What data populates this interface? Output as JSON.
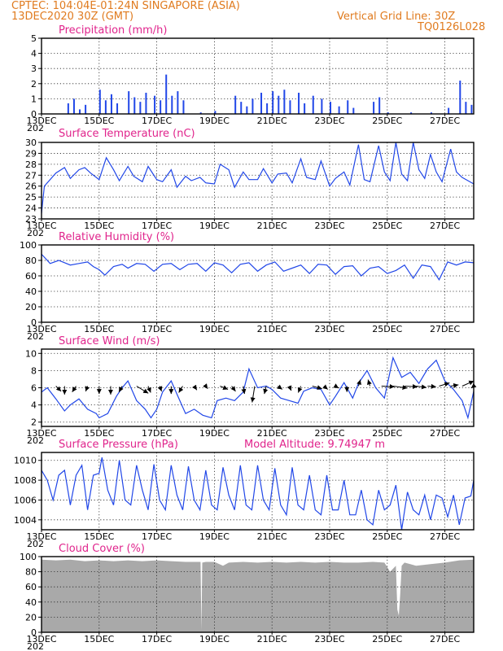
{
  "header": {
    "line1": "CPTEC:  104:04E-01:24N  SINGAPORE (ASIA)",
    "line2": "13DEC2020 30Z (GMT)",
    "grid_note": "Vertical Grid Line: 30Z",
    "code": "TQ0126L028"
  },
  "colors": {
    "header": "#e07b1f",
    "title": "#e0248c",
    "series": "#2147e8",
    "cloud": "#a9a9a9"
  },
  "x_axis": {
    "day_range": [
      13,
      28
    ],
    "tick_labels": [
      "13DEC",
      "15DEC",
      "17DEC",
      "19DEC",
      "21DEC",
      "23DEC",
      "25DEC",
      "27DEC"
    ],
    "tick_days": [
      13,
      15,
      17,
      19,
      21,
      23,
      25,
      27
    ],
    "left_fragment": "202"
  },
  "chart_data": [
    {
      "id": "precipitation",
      "type": "bar",
      "title": "Precipitation  (mm/h)",
      "ylim": [
        0,
        5
      ],
      "yticks": [
        0,
        1,
        2,
        3,
        4,
        5
      ],
      "ytick_labels": [
        "0",
        "1",
        "2",
        "3",
        "4",
        "5"
      ],
      "x_unit": "day of Dec 2020",
      "x": [
        13.9,
        14.1,
        14.3,
        14.5,
        15.0,
        15.2,
        15.4,
        15.6,
        16.0,
        16.2,
        16.4,
        16.6,
        16.9,
        17.1,
        17.3,
        17.5,
        17.7,
        17.9,
        18.5,
        19.0,
        19.7,
        19.9,
        20.1,
        20.3,
        20.6,
        20.8,
        21.0,
        21.2,
        21.4,
        21.6,
        21.9,
        22.1,
        22.4,
        22.7,
        23.0,
        23.3,
        23.6,
        23.8,
        24.5,
        24.7,
        25.0,
        25.8,
        26.5,
        27.1,
        27.5,
        27.7,
        27.9
      ],
      "values": [
        0.7,
        1.0,
        0.3,
        0.6,
        1.6,
        0.9,
        1.3,
        0.7,
        1.5,
        1.1,
        0.8,
        1.4,
        1.2,
        0.9,
        2.6,
        1.2,
        1.5,
        0.9,
        0.1,
        0.2,
        1.2,
        0.8,
        0.5,
        1.0,
        1.4,
        0.7,
        1.5,
        1.2,
        1.6,
        0.9,
        1.4,
        0.7,
        1.2,
        1.0,
        0.8,
        0.5,
        0.9,
        0.4,
        0.8,
        1.1,
        0.1,
        0.1,
        0.1,
        0.4,
        2.2,
        0.8,
        0.6
      ]
    },
    {
      "id": "temperature",
      "type": "line",
      "title": "Surface Temperature (nC)",
      "ylim": [
        23,
        30
      ],
      "yticks": [
        23,
        24,
        25,
        26,
        27,
        28,
        29,
        30
      ],
      "ytick_labels": [
        "23",
        "24",
        "25",
        "26",
        "27",
        "28",
        "29",
        "30"
      ],
      "x": [
        13.0,
        13.1,
        13.5,
        13.8,
        14.0,
        14.3,
        14.5,
        14.7,
        15.0,
        15.25,
        15.5,
        15.7,
        16.0,
        16.2,
        16.5,
        16.7,
        17.0,
        17.2,
        17.5,
        17.7,
        18.0,
        18.2,
        18.5,
        18.7,
        19.0,
        19.2,
        19.5,
        19.7,
        20.0,
        20.2,
        20.5,
        20.7,
        21.0,
        21.2,
        21.5,
        21.7,
        22.0,
        22.2,
        22.5,
        22.7,
        23.0,
        23.2,
        23.5,
        23.7,
        24.0,
        24.2,
        24.4,
        24.7,
        24.9,
        25.1,
        25.3,
        25.5,
        25.7,
        25.9,
        26.1,
        26.3,
        26.5,
        26.7,
        26.9,
        27.2,
        27.4,
        27.6,
        27.8,
        28.0
      ],
      "values": [
        23.5,
        26.0,
        27.2,
        27.7,
        26.7,
        27.5,
        27.7,
        27.2,
        26.6,
        28.6,
        27.5,
        26.5,
        27.8,
        26.9,
        26.4,
        27.8,
        26.6,
        26.4,
        27.5,
        25.9,
        26.9,
        26.5,
        26.8,
        26.3,
        26.2,
        28.0,
        27.5,
        25.9,
        27.3,
        26.6,
        26.6,
        27.6,
        26.3,
        27.1,
        27.2,
        26.3,
        28.5,
        26.8,
        26.6,
        28.3,
        26.0,
        26.7,
        27.3,
        26.1,
        29.8,
        26.6,
        26.4,
        29.7,
        27.3,
        26.5,
        30.0,
        27.1,
        26.5,
        30.0,
        27.5,
        26.7,
        28.9,
        27.3,
        26.4,
        29.4,
        27.3,
        26.8,
        26.5,
        26.2
      ]
    },
    {
      "id": "humidity",
      "type": "line",
      "title": "Relative Humidity  (%)",
      "ylim": [
        0,
        100
      ],
      "yticks": [
        0,
        20,
        40,
        60,
        80,
        100
      ],
      "ytick_labels": [
        "0",
        "20",
        "40",
        "60",
        "80",
        "100"
      ],
      "x": [
        13.0,
        13.3,
        13.6,
        14.0,
        14.3,
        14.6,
        14.8,
        15.0,
        15.2,
        15.5,
        15.8,
        16.0,
        16.3,
        16.6,
        16.9,
        17.2,
        17.5,
        17.8,
        18.1,
        18.4,
        18.7,
        19.0,
        19.3,
        19.6,
        19.9,
        20.2,
        20.5,
        20.8,
        21.1,
        21.4,
        21.7,
        22.0,
        22.3,
        22.6,
        22.9,
        23.2,
        23.5,
        23.8,
        24.1,
        24.4,
        24.7,
        25.0,
        25.3,
        25.6,
        25.9,
        26.2,
        26.5,
        26.8,
        27.1,
        27.4,
        27.7,
        28.0
      ],
      "values": [
        88,
        76,
        80,
        74,
        76,
        78,
        72,
        68,
        61,
        72,
        75,
        70,
        76,
        75,
        66,
        75,
        76,
        68,
        75,
        76,
        66,
        77,
        74,
        64,
        75,
        77,
        66,
        74,
        78,
        66,
        70,
        74,
        63,
        75,
        74,
        62,
        72,
        73,
        60,
        70,
        72,
        63,
        67,
        74,
        57,
        74,
        72,
        55,
        78,
        74,
        78,
        77
      ]
    },
    {
      "id": "wind",
      "type": "line",
      "title": "Surface Wind  (m/s)",
      "ylim": [
        1.5,
        10.5
      ],
      "yticks": [
        2,
        4,
        6,
        8,
        10
      ],
      "ytick_labels": [
        "2",
        "4",
        "6",
        "8",
        "10"
      ],
      "x": [
        13.0,
        13.2,
        13.5,
        13.8,
        14.0,
        14.3,
        14.6,
        14.9,
        15.0,
        15.3,
        15.6,
        15.8,
        16.0,
        16.3,
        16.6,
        16.8,
        17.0,
        17.2,
        17.5,
        17.8,
        18.0,
        18.3,
        18.6,
        18.9,
        19.1,
        19.4,
        19.7,
        20.0,
        20.2,
        20.5,
        20.8,
        21.0,
        21.3,
        21.6,
        21.9,
        22.1,
        22.4,
        22.7,
        23.0,
        23.2,
        23.5,
        23.8,
        24.0,
        24.3,
        24.6,
        24.9,
        25.2,
        25.5,
        25.8,
        26.1,
        26.4,
        26.7,
        27.0,
        27.3,
        27.6,
        27.8,
        28.0
      ],
      "values": [
        5.5,
        6.0,
        4.7,
        3.3,
        4.0,
        4.7,
        3.5,
        3.0,
        2.5,
        3.0,
        5.0,
        6.0,
        6.8,
        4.5,
        3.5,
        2.5,
        3.5,
        5.5,
        6.8,
        4.5,
        3.0,
        3.5,
        2.8,
        2.5,
        4.5,
        4.8,
        4.5,
        5.5,
        8.2,
        6.0,
        6.2,
        5.8,
        4.8,
        4.5,
        4.2,
        5.6,
        6.0,
        5.8,
        4.0,
        5.0,
        6.6,
        4.8,
        6.5,
        8.0,
        6.0,
        4.8,
        9.5,
        7.2,
        7.8,
        6.5,
        8.2,
        9.2,
        6.8,
        5.8,
        4.5,
        2.5,
        5.6
      ],
      "vectors_x": [
        13.5,
        13.8,
        14.2,
        14.6,
        15.0,
        15.4,
        15.8,
        16.3,
        16.7,
        17.1,
        17.5,
        17.9,
        18.3,
        18.7,
        19.2,
        19.6,
        20.0,
        20.4,
        20.8,
        21.2,
        21.6,
        22.0,
        22.4,
        22.8,
        23.2,
        23.6,
        24.0,
        24.4,
        24.8,
        25.2,
        25.6,
        26.0,
        26.4,
        26.8,
        27.2,
        27.6,
        28.0
      ],
      "vectors_u": [
        0.8,
        0.0,
        -0.6,
        -0.3,
        0.0,
        0.0,
        -0.5,
        1.8,
        0.4,
        0.3,
        0.0,
        -0.6,
        0.4,
        0.3,
        1.2,
        0.6,
        0.2,
        -0.4,
        -0.3,
        0.7,
        0.3,
        -0.4,
        1.5,
        0.6,
        0.5,
        0.0,
        0.3,
        -0.3,
        2.0,
        2.2,
        2.0,
        1.6,
        1.3,
        1.6,
        1.2,
        1.8,
        -0.4
      ],
      "vectors_v": [
        -0.8,
        -1.3,
        -0.9,
        -0.8,
        -1.2,
        -1.3,
        -0.9,
        -1.1,
        -1.0,
        -0.8,
        -1.2,
        -1.0,
        -0.6,
        -0.4,
        -0.5,
        -0.8,
        -1.2,
        -2.5,
        -1.2,
        -0.5,
        -0.7,
        -1.0,
        -0.4,
        -0.5,
        -0.3,
        -0.9,
        1.0,
        1.0,
        -0.1,
        -0.3,
        -0.1,
        -0.2,
        -0.1,
        0.5,
        0.2,
        0.8,
        -0.3
      ]
    },
    {
      "id": "pressure",
      "type": "line",
      "title": "Surface Pressure (hPa)",
      "annotation": "Model Altitude: 9.74947 m",
      "ylim": [
        1003,
        1010.8
      ],
      "yticks": [
        1004,
        1006,
        1008,
        1010
      ],
      "ytick_labels": [
        "1004",
        "1006",
        "1008",
        "1010"
      ],
      "x": [
        13.0,
        13.2,
        13.4,
        13.6,
        13.8,
        14.0,
        14.2,
        14.4,
        14.6,
        14.8,
        15.0,
        15.1,
        15.3,
        15.5,
        15.7,
        15.9,
        16.1,
        16.3,
        16.5,
        16.7,
        16.9,
        17.1,
        17.3,
        17.5,
        17.7,
        17.9,
        18.1,
        18.3,
        18.5,
        18.7,
        18.9,
        19.1,
        19.3,
        19.5,
        19.7,
        19.9,
        20.1,
        20.3,
        20.5,
        20.7,
        20.9,
        21.1,
        21.3,
        21.5,
        21.7,
        21.9,
        22.1,
        22.3,
        22.5,
        22.7,
        22.9,
        23.1,
        23.3,
        23.5,
        23.7,
        23.9,
        24.1,
        24.3,
        24.5,
        24.7,
        24.9,
        25.1,
        25.3,
        25.5,
        25.7,
        25.9,
        26.1,
        26.3,
        26.5,
        26.7,
        26.9,
        27.1,
        27.3,
        27.5,
        27.7,
        27.9,
        28.0
      ],
      "values": [
        1009,
        1008,
        1006,
        1008.5,
        1009,
        1005.5,
        1008.5,
        1009.5,
        1005,
        1008.5,
        1008.7,
        1010.3,
        1007,
        1005.5,
        1010,
        1006,
        1005.5,
        1009.5,
        1007,
        1005,
        1009.6,
        1006,
        1005,
        1009.5,
        1006.5,
        1005,
        1009.4,
        1006,
        1005,
        1009,
        1005.5,
        1005,
        1009.3,
        1006.5,
        1005,
        1009.5,
        1005.5,
        1005,
        1009.5,
        1006,
        1005,
        1009.2,
        1005.5,
        1004.5,
        1009.3,
        1005.5,
        1005,
        1008.5,
        1005,
        1004.5,
        1008.5,
        1005,
        1005,
        1008,
        1004.5,
        1004.5,
        1007,
        1004,
        1003.5,
        1007,
        1005,
        1005.5,
        1007.5,
        1003,
        1006.8,
        1005,
        1004.5,
        1006.5,
        1004,
        1006.5,
        1006.2,
        1004.3,
        1006.5,
        1003.5,
        1006.2,
        1006.4,
        1008
      ]
    },
    {
      "id": "cloud",
      "type": "area",
      "title": "Cloud Cover  (%)",
      "ylim": [
        0,
        100
      ],
      "yticks": [
        0,
        20,
        40,
        60,
        80,
        100
      ],
      "ytick_labels": [
        "0",
        "20",
        "40",
        "60",
        "80",
        "100"
      ],
      "x": [
        13.0,
        13.5,
        14.0,
        14.5,
        15.0,
        15.5,
        16.0,
        16.5,
        17.0,
        17.5,
        18.0,
        18.4,
        18.52,
        18.55,
        18.58,
        18.7,
        19.0,
        19.3,
        19.5,
        20.0,
        20.5,
        21.0,
        21.5,
        22.0,
        22.5,
        23.0,
        23.5,
        24.0,
        24.5,
        24.9,
        25.1,
        25.3,
        25.35,
        25.4,
        25.45,
        25.5,
        25.6,
        25.8,
        26.0,
        26.5,
        27.0,
        27.5,
        28.0
      ],
      "values": [
        96,
        95,
        96,
        94,
        95,
        94,
        95,
        94,
        95,
        94,
        93,
        93,
        93,
        2,
        92,
        93,
        93,
        88,
        92,
        93,
        92,
        93,
        92,
        93,
        92,
        93,
        92,
        92,
        93,
        92,
        80,
        88,
        30,
        22,
        50,
        88,
        92,
        90,
        88,
        90,
        92,
        95,
        96
      ]
    }
  ]
}
